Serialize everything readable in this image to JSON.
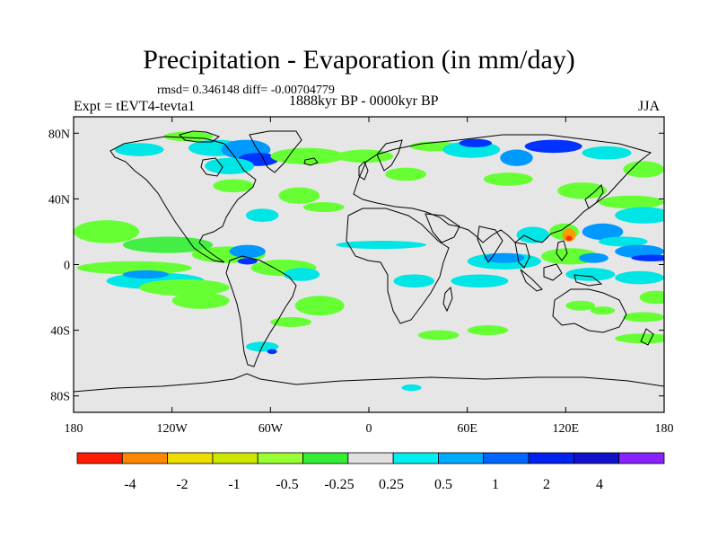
{
  "title": "Precipitation - Evaporation (in mm/day)",
  "stats": "rmsd= 0.346148 diff= -0.00704779",
  "experiment": "Expt = tEVT4-tevta1",
  "subtitle": "1888kyr BP - 0000kyr BP",
  "season": "JJA",
  "map": {
    "lon_range": [
      -180,
      180
    ],
    "lat_range": [
      -90,
      90
    ],
    "background_color": "#e6e6e6",
    "x_ticks": [
      {
        "value": -180,
        "label": "180"
      },
      {
        "value": -120,
        "label": "120W"
      },
      {
        "value": -60,
        "label": "60W"
      },
      {
        "value": 0,
        "label": "0"
      },
      {
        "value": 60,
        "label": "60E"
      },
      {
        "value": 120,
        "label": "120E"
      },
      {
        "value": 180,
        "label": "180"
      }
    ],
    "y_ticks": [
      {
        "value": 80,
        "label": "80N"
      },
      {
        "value": 40,
        "label": "40N"
      },
      {
        "value": 0,
        "label": "0"
      },
      {
        "value": -40,
        "label": "40S"
      },
      {
        "value": -80,
        "label": "80S"
      }
    ],
    "anomaly_regions": [
      {
        "lon": -180,
        "lat": 20,
        "w": 40,
        "h": 14,
        "color": "#66ff33"
      },
      {
        "lon": -150,
        "lat": 12,
        "w": 55,
        "h": 10,
        "color": "#44ee44"
      },
      {
        "lon": -108,
        "lat": 6,
        "w": 45,
        "h": 10,
        "color": "#66ff33"
      },
      {
        "lon": -178,
        "lat": -2,
        "w": 70,
        "h": 8,
        "color": "#66ff33"
      },
      {
        "lon": -160,
        "lat": -10,
        "w": 60,
        "h": 10,
        "color": "#00e5e5"
      },
      {
        "lon": -150,
        "lat": -6,
        "w": 28,
        "h": 5,
        "color": "#0099ff"
      },
      {
        "lon": -140,
        "lat": -14,
        "w": 55,
        "h": 10,
        "color": "#66ff33"
      },
      {
        "lon": -120,
        "lat": -22,
        "w": 35,
        "h": 10,
        "color": "#66ff33"
      },
      {
        "lon": -85,
        "lat": 8,
        "w": 22,
        "h": 8,
        "color": "#0099ff"
      },
      {
        "lon": -80,
        "lat": 2,
        "w": 12,
        "h": 4,
        "color": "#0033ff"
      },
      {
        "lon": -72,
        "lat": -2,
        "w": 40,
        "h": 10,
        "color": "#66ff33"
      },
      {
        "lon": -52,
        "lat": -6,
        "w": 22,
        "h": 8,
        "color": "#00e5e5"
      },
      {
        "lon": -155,
        "lat": 70,
        "w": 30,
        "h": 8,
        "color": "#00e5e5"
      },
      {
        "lon": -125,
        "lat": 78,
        "w": 30,
        "h": 6,
        "color": "#66ff33"
      },
      {
        "lon": -110,
        "lat": 71,
        "w": 35,
        "h": 10,
        "color": "#00e5e5"
      },
      {
        "lon": -90,
        "lat": 70,
        "w": 30,
        "h": 12,
        "color": "#0099ff"
      },
      {
        "lon": -80,
        "lat": 64,
        "w": 25,
        "h": 8,
        "color": "#0033ff"
      },
      {
        "lon": -100,
        "lat": 60,
        "w": 30,
        "h": 10,
        "color": "#00e5e5"
      },
      {
        "lon": -60,
        "lat": 66,
        "w": 45,
        "h": 10,
        "color": "#66ff33"
      },
      {
        "lon": -95,
        "lat": 48,
        "w": 25,
        "h": 8,
        "color": "#66ff33"
      },
      {
        "lon": -75,
        "lat": 30,
        "w": 20,
        "h": 8,
        "color": "#00e5e5"
      },
      {
        "lon": -55,
        "lat": 42,
        "w": 25,
        "h": 10,
        "color": "#66ff33"
      },
      {
        "lon": -40,
        "lat": 35,
        "w": 25,
        "h": 6,
        "color": "#66ff33"
      },
      {
        "lon": -20,
        "lat": 66,
        "w": 35,
        "h": 8,
        "color": "#66ff33"
      },
      {
        "lon": -45,
        "lat": -25,
        "w": 30,
        "h": 12,
        "color": "#66ff33"
      },
      {
        "lon": -60,
        "lat": -35,
        "w": 25,
        "h": 6,
        "color": "#66ff33"
      },
      {
        "lon": -75,
        "lat": -50,
        "w": 20,
        "h": 6,
        "color": "#00e5e5"
      },
      {
        "lon": -62,
        "lat": -53,
        "w": 6,
        "h": 3,
        "color": "#0033ff"
      },
      {
        "lon": -20,
        "lat": 12,
        "w": 55,
        "h": 5,
        "color": "#00e5e5"
      },
      {
        "lon": 15,
        "lat": -10,
        "w": 25,
        "h": 8,
        "color": "#00e5e5"
      },
      {
        "lon": 10,
        "lat": 55,
        "w": 25,
        "h": 8,
        "color": "#66ff33"
      },
      {
        "lon": 25,
        "lat": 72,
        "w": 30,
        "h": 6,
        "color": "#66ff33"
      },
      {
        "lon": 45,
        "lat": 70,
        "w": 35,
        "h": 10,
        "color": "#00e5e5"
      },
      {
        "lon": 55,
        "lat": 74,
        "w": 20,
        "h": 5,
        "color": "#0033ff"
      },
      {
        "lon": 80,
        "lat": 65,
        "w": 20,
        "h": 10,
        "color": "#0099ff"
      },
      {
        "lon": 95,
        "lat": 72,
        "w": 35,
        "h": 8,
        "color": "#0033ff"
      },
      {
        "lon": 130,
        "lat": 68,
        "w": 30,
        "h": 8,
        "color": "#00e5e5"
      },
      {
        "lon": 155,
        "lat": 58,
        "w": 25,
        "h": 10,
        "color": "#66ff33"
      },
      {
        "lon": 70,
        "lat": 52,
        "w": 30,
        "h": 8,
        "color": "#66ff33"
      },
      {
        "lon": 115,
        "lat": 45,
        "w": 30,
        "h": 10,
        "color": "#66ff33"
      },
      {
        "lon": 140,
        "lat": 38,
        "w": 40,
        "h": 8,
        "color": "#66ff33"
      },
      {
        "lon": 150,
        "lat": 30,
        "w": 35,
        "h": 10,
        "color": "#00e5e5"
      },
      {
        "lon": 60,
        "lat": 2,
        "w": 45,
        "h": 10,
        "color": "#00e5e5"
      },
      {
        "lon": 70,
        "lat": 4,
        "w": 25,
        "h": 6,
        "color": "#0099ff"
      },
      {
        "lon": 50,
        "lat": -10,
        "w": 35,
        "h": 8,
        "color": "#00e5e5"
      },
      {
        "lon": 90,
        "lat": 18,
        "w": 20,
        "h": 10,
        "color": "#00e5e5"
      },
      {
        "lon": 110,
        "lat": 20,
        "w": 18,
        "h": 10,
        "color": "#66ff33"
      },
      {
        "lon": 118,
        "lat": 18,
        "w": 8,
        "h": 8,
        "color": "#ff9900"
      },
      {
        "lon": 120,
        "lat": 16,
        "w": 4,
        "h": 3,
        "color": "#ff3300"
      },
      {
        "lon": 130,
        "lat": 20,
        "w": 25,
        "h": 10,
        "color": "#0099ff"
      },
      {
        "lon": 140,
        "lat": 14,
        "w": 30,
        "h": 6,
        "color": "#00e5e5"
      },
      {
        "lon": 105,
        "lat": 5,
        "w": 35,
        "h": 10,
        "color": "#66ff33"
      },
      {
        "lon": 128,
        "lat": 4,
        "w": 18,
        "h": 6,
        "color": "#0099ff"
      },
      {
        "lon": 150,
        "lat": 8,
        "w": 30,
        "h": 8,
        "color": "#0099ff"
      },
      {
        "lon": 160,
        "lat": 4,
        "w": 25,
        "h": 4,
        "color": "#0033ff"
      },
      {
        "lon": 150,
        "lat": -8,
        "w": 30,
        "h": 8,
        "color": "#00e5e5"
      },
      {
        "lon": 120,
        "lat": -6,
        "w": 30,
        "h": 8,
        "color": "#00e5e5"
      },
      {
        "lon": 120,
        "lat": -25,
        "w": 18,
        "h": 6,
        "color": "#66ff33"
      },
      {
        "lon": 135,
        "lat": -28,
        "w": 15,
        "h": 5,
        "color": "#66ff33"
      },
      {
        "lon": 155,
        "lat": -32,
        "w": 25,
        "h": 6,
        "color": "#66ff33"
      },
      {
        "lon": 150,
        "lat": -45,
        "w": 35,
        "h": 6,
        "color": "#66ff33"
      },
      {
        "lon": 165,
        "lat": -20,
        "w": 20,
        "h": 8,
        "color": "#66ff33"
      },
      {
        "lon": 30,
        "lat": -43,
        "w": 25,
        "h": 6,
        "color": "#66ff33"
      },
      {
        "lon": 60,
        "lat": -40,
        "w": 25,
        "h": 6,
        "color": "#66ff33"
      },
      {
        "lon": 20,
        "lat": -75,
        "w": 12,
        "h": 4,
        "color": "#00e5e5"
      }
    ]
  },
  "colorbar": {
    "colors": [
      "#ff1a00",
      "#ff8800",
      "#eedd00",
      "#cce600",
      "#99ff33",
      "#33ee33",
      "#e0e0e0",
      "#00eeee",
      "#00aaff",
      "#0066ff",
      "#0022ee",
      "#1111cc",
      "#8822ff"
    ],
    "labels": [
      "-4",
      "-2",
      "-1",
      "-0.5",
      "-0.25",
      "0.25",
      "0.5",
      "1",
      "2",
      "4"
    ]
  }
}
